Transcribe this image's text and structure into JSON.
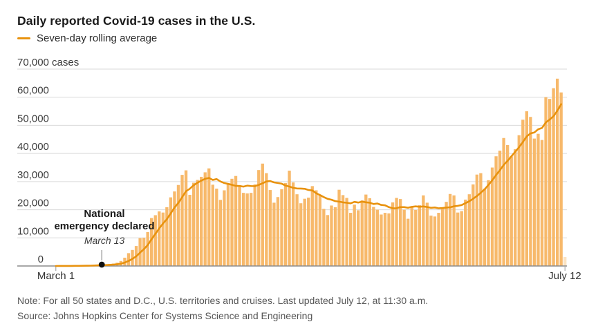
{
  "header": {
    "title": "Daily reported Covid-19 cases in the U.S.",
    "legend_label": "Seven-day rolling average"
  },
  "colors": {
    "bar": "#F7B96B",
    "bar_partial": "#FBE3C2",
    "line": "#E8920E",
    "grid": "#D9D9D9",
    "axis": "#8C8C8C",
    "axis_tick": "#A6A6A6",
    "marker_dot": "#111111",
    "y_label": "#3C3C3C"
  },
  "chart_data": {
    "type": "bar",
    "title": "Daily reported Covid-19 cases in the U.S.",
    "legend": [
      "Seven-day rolling average"
    ],
    "legend_position": "top-left",
    "grid": true,
    "ylim": [
      0,
      70000
    ],
    "yticks": [
      {
        "value": 0,
        "label": "0",
        "align": "end"
      },
      {
        "value": 10000,
        "label": "10,000",
        "align": "start"
      },
      {
        "value": 20000,
        "label": "20,000",
        "align": "start"
      },
      {
        "value": 30000,
        "label": "30,000",
        "align": "start"
      },
      {
        "value": 40000,
        "label": "40,000",
        "align": "start"
      },
      {
        "value": 50000,
        "label": "50,000",
        "align": "start"
      },
      {
        "value": 60000,
        "label": "60,000",
        "align": "start"
      },
      {
        "value": 70000,
        "label": "70,000 cases",
        "align": "start"
      }
    ],
    "x_start_label": "March 1",
    "x_end_label": "July 12",
    "rolling_average_window": 7,
    "last_bar_partial": true,
    "values": [
      6,
      23,
      19,
      33,
      77,
      109,
      126,
      116,
      166,
      291,
      313,
      382,
      426,
      529,
      698,
      840,
      1151,
      1770,
      2950,
      4560,
      5700,
      7100,
      9900,
      10050,
      12050,
      17050,
      18050,
      19400,
      19000,
      20900,
      24400,
      26500,
      28800,
      32400,
      34000,
      25300,
      29600,
      30600,
      31700,
      33300,
      34700,
      28900,
      27500,
      23500,
      26900,
      29500,
      31000,
      32000,
      28700,
      26000,
      25800,
      26000,
      29000,
      34100,
      36400,
      33000,
      27000,
      22500,
      24500,
      27300,
      29500,
      33900,
      29700,
      25500,
      22300,
      23900,
      24300,
      28400,
      26900,
      25300,
      20300,
      18100,
      21500,
      20900,
      27100,
      25200,
      24200,
      18900,
      21800,
      19800,
      23300,
      25400,
      24100,
      21000,
      20000,
      18300,
      18900,
      18700,
      22600,
      24200,
      23800,
      20000,
      16800,
      21000,
      19900,
      21600,
      25100,
      22500,
      17900,
      17600,
      18900,
      20700,
      22800,
      25600,
      25100,
      19000,
      19500,
      23600,
      25500,
      29000,
      32500,
      33000,
      27500,
      30500,
      35000,
      39000,
      41000,
      45500,
      43000,
      39000,
      41500,
      46500,
      52000,
      55000,
      53000,
      45300,
      47000,
      44800,
      60000,
      59400,
      63200,
      66600,
      61700,
      3200
    ],
    "annotation": {
      "line1": "National",
      "line2": "emergency declared",
      "date": "March 13",
      "day_index": 12
    }
  },
  "footer": {
    "note": "Note: For all 50 states and D.C., U.S. territories and cruises. Last updated July 12, at 11:30 a.m.",
    "source": "Source: Johns Hopkins Center for Systems Science and Engineering"
  }
}
